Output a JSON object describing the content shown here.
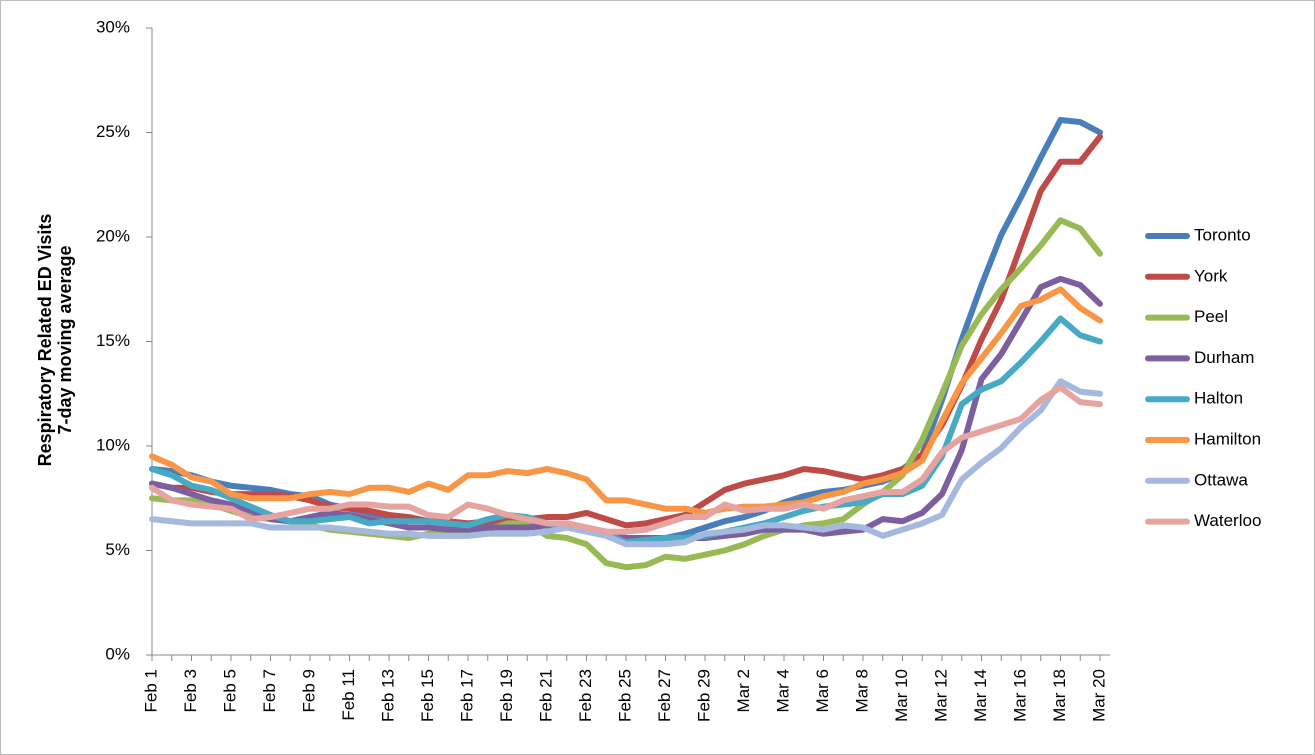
{
  "chart_data": {
    "type": "line",
    "ylabel": [
      "Respiratory  Related ED Visits",
      "7-day moving average"
    ],
    "categories": [
      "Feb 1",
      null,
      "Feb 3",
      null,
      "Feb 5",
      null,
      "Feb 7",
      null,
      "Feb 9",
      null,
      "Feb 11",
      null,
      "Feb 13",
      null,
      "Feb 15",
      null,
      "Feb 17",
      null,
      "Feb 19",
      null,
      "Feb 21",
      null,
      "Feb 23",
      null,
      "Feb 25",
      null,
      "Feb 27",
      null,
      "Feb 29",
      null,
      "Mar 2",
      null,
      "Mar 4",
      null,
      "Mar 6",
      null,
      "Mar 8",
      null,
      "Mar 10",
      null,
      "Mar 12",
      null,
      "Mar 14",
      null,
      "Mar 16",
      null,
      "Mar 18",
      null,
      "Mar 20"
    ],
    "ylim": [
      0,
      30
    ],
    "yticks": [
      {
        "value": 0,
        "label": "0%"
      },
      {
        "value": 5,
        "label": "5%"
      },
      {
        "value": 10,
        "label": "10%"
      },
      {
        "value": 15,
        "label": "15%"
      },
      {
        "value": 20,
        "label": "20%"
      },
      {
        "value": 25,
        "label": "25%"
      },
      {
        "value": 30,
        "label": "30%"
      }
    ],
    "legend": "right",
    "series": [
      {
        "name": "Toronto",
        "color": "#4a7ebb",
        "values": [
          8.9,
          8.8,
          8.6,
          8.3,
          8.1,
          8.0,
          7.9,
          7.7,
          7.6,
          7.2,
          7.0,
          6.8,
          6.6,
          6.5,
          6.4,
          6.3,
          6.2,
          6.3,
          6.4,
          6.3,
          6.2,
          6.1,
          6.0,
          5.8,
          5.6,
          5.5,
          5.6,
          5.8,
          6.1,
          6.4,
          6.6,
          6.9,
          7.3,
          7.6,
          7.8,
          7.9,
          8.1,
          8.3,
          8.7,
          9.6,
          12.2,
          15.1,
          17.7,
          20.1,
          21.9,
          23.8,
          25.6,
          25.5,
          25.0
        ]
      },
      {
        "name": "York",
        "color": "#be4b48",
        "values": [
          8.2,
          8.0,
          8.0,
          7.8,
          7.7,
          7.7,
          7.7,
          7.6,
          7.4,
          7.1,
          7.0,
          6.9,
          6.7,
          6.6,
          6.4,
          6.4,
          6.3,
          6.4,
          6.5,
          6.5,
          6.6,
          6.6,
          6.8,
          6.5,
          6.2,
          6.3,
          6.5,
          6.7,
          7.3,
          7.9,
          8.2,
          8.4,
          8.6,
          8.9,
          8.8,
          8.6,
          8.4,
          8.6,
          8.9,
          9.6,
          11.0,
          12.9,
          15.1,
          17.0,
          19.6,
          22.2,
          23.6,
          23.6,
          24.8
        ]
      },
      {
        "name": "Peel",
        "color": "#98b954",
        "values": [
          7.5,
          7.4,
          7.4,
          7.2,
          6.9,
          6.6,
          6.5,
          6.4,
          6.2,
          6.0,
          5.9,
          5.8,
          5.7,
          5.6,
          5.8,
          5.9,
          5.9,
          6.0,
          6.3,
          6.3,
          5.7,
          5.6,
          5.3,
          4.4,
          4.2,
          4.3,
          4.7,
          4.6,
          4.8,
          5.0,
          5.3,
          5.7,
          6.0,
          6.2,
          6.3,
          6.5,
          7.2,
          7.8,
          8.6,
          10.3,
          12.5,
          14.8,
          16.3,
          17.5,
          18.5,
          19.6,
          20.8,
          20.4,
          19.2
        ]
      },
      {
        "name": "Durham",
        "color": "#7d5fa0",
        "values": [
          8.2,
          8.0,
          7.7,
          7.4,
          7.2,
          6.9,
          6.5,
          6.4,
          6.6,
          6.8,
          6.7,
          6.5,
          6.3,
          6.1,
          6.1,
          6.0,
          6.0,
          6.1,
          6.1,
          6.1,
          6.2,
          6.3,
          6.1,
          5.9,
          5.6,
          5.6,
          5.6,
          5.6,
          5.6,
          5.7,
          5.8,
          6.0,
          6.0,
          6.0,
          5.8,
          5.9,
          6.0,
          6.5,
          6.4,
          6.8,
          7.7,
          9.8,
          13.2,
          14.4,
          16.0,
          17.6,
          18.0,
          17.7,
          16.8
        ]
      },
      {
        "name": "Halton",
        "color": "#46aac5",
        "values": [
          8.9,
          8.6,
          8.1,
          7.9,
          7.5,
          7.1,
          6.7,
          6.4,
          6.4,
          6.5,
          6.6,
          6.3,
          6.4,
          6.4,
          6.4,
          6.3,
          6.2,
          6.5,
          6.7,
          6.6,
          6.3,
          6.1,
          6.0,
          5.8,
          5.4,
          5.5,
          5.6,
          5.6,
          5.7,
          5.9,
          6.1,
          6.3,
          6.6,
          6.9,
          7.1,
          7.2,
          7.3,
          7.7,
          7.7,
          8.1,
          9.5,
          12.0,
          12.7,
          13.1,
          14.0,
          15.0,
          16.1,
          15.3,
          15.0
        ]
      },
      {
        "name": "Hamilton",
        "color": "#f79646",
        "values": [
          9.5,
          9.1,
          8.5,
          8.3,
          7.7,
          7.5,
          7.5,
          7.5,
          7.7,
          7.8,
          7.7,
          8.0,
          8.0,
          7.8,
          8.2,
          7.9,
          8.6,
          8.6,
          8.8,
          8.7,
          8.9,
          8.7,
          8.4,
          7.4,
          7.4,
          7.2,
          7.0,
          7.0,
          6.8,
          7.0,
          7.1,
          7.1,
          7.2,
          7.3,
          7.6,
          7.8,
          8.2,
          8.4,
          8.7,
          9.3,
          11.2,
          13.0,
          14.2,
          15.4,
          16.7,
          17.0,
          17.5,
          16.6,
          16.0
        ]
      },
      {
        "name": "Ottawa",
        "color": "#a5b9de",
        "values": [
          6.5,
          6.4,
          6.3,
          6.3,
          6.3,
          6.3,
          6.1,
          6.1,
          6.1,
          6.1,
          6.0,
          5.9,
          5.8,
          5.8,
          5.7,
          5.7,
          5.7,
          5.8,
          5.8,
          5.8,
          5.9,
          6.1,
          5.9,
          5.7,
          5.3,
          5.3,
          5.3,
          5.4,
          5.8,
          5.9,
          6.0,
          6.2,
          6.2,
          6.1,
          6.0,
          6.2,
          6.1,
          5.7,
          6.0,
          6.3,
          6.7,
          8.4,
          9.2,
          9.9,
          10.9,
          11.7,
          13.1,
          12.6,
          12.5
        ]
      },
      {
        "name": "Waterloo",
        "color": "#e6a3a0",
        "values": [
          8.0,
          7.4,
          7.2,
          7.1,
          7.0,
          6.5,
          6.6,
          6.8,
          7.0,
          7.0,
          7.2,
          7.2,
          7.1,
          7.1,
          6.7,
          6.6,
          7.2,
          7.0,
          6.7,
          6.5,
          6.3,
          6.3,
          6.1,
          5.9,
          5.9,
          6.0,
          6.3,
          6.6,
          6.6,
          7.2,
          6.9,
          7.0,
          7.0,
          7.2,
          7.0,
          7.4,
          7.6,
          7.8,
          7.8,
          8.4,
          9.7,
          10.4,
          10.7,
          11.0,
          11.3,
          12.2,
          12.8,
          12.1,
          12.0
        ]
      }
    ]
  }
}
